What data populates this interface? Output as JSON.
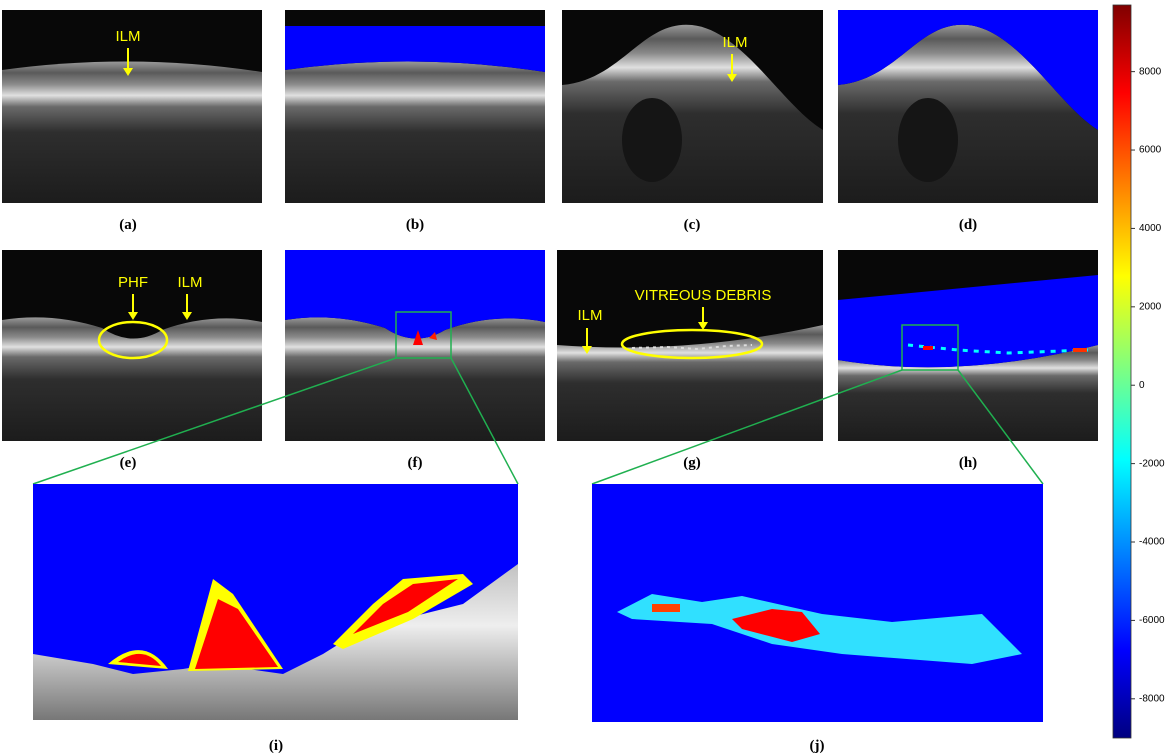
{
  "panels": {
    "labels": [
      "(a)",
      "(b)",
      "(c)",
      "(d)",
      "(e)",
      "(f)",
      "(g)",
      "(h)",
      "(i)",
      "(j)"
    ]
  },
  "annotations": [
    "ILM",
    "ILM",
    "PHF",
    "ILM",
    "ILM",
    "VITREOUS DEBRIS"
  ],
  "colorbar": {
    "lim": [
      -9000,
      9700
    ],
    "ticks": [
      8000,
      6000,
      4000,
      2000,
      0,
      -2000,
      -4000,
      -6000,
      -8000
    ]
  }
}
